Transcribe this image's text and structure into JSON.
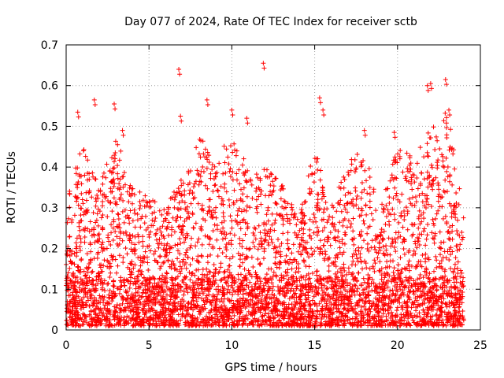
{
  "chart_data": {
    "type": "scatter",
    "title": "Day 077 of 2024, Rate Of TEC Index for receiver sctb",
    "xlabel": "GPS time / hours",
    "ylabel": "ROTI / TECUs",
    "xlim": [
      0,
      25
    ],
    "ylim": [
      0,
      0.7
    ],
    "x_ticks": [
      0,
      5,
      10,
      15,
      20,
      25
    ],
    "y_ticks": [
      0,
      0.1,
      0.2,
      0.3,
      0.4,
      0.5,
      0.6,
      0.7
    ],
    "x_tick_labels": [
      "0",
      "5",
      "10",
      "15",
      "20",
      "25"
    ],
    "y_tick_labels": [
      "0",
      "0.1",
      "0.2",
      "0.3",
      "0.4",
      "0.5",
      "0.6",
      "0.7"
    ],
    "grid": true,
    "marker": "+",
    "marker_color": "#ff0000",
    "data_extent_hours": [
      0,
      24
    ],
    "series": [
      {
        "name": "ROTI",
        "highlight_points": {
          "x": [
            0.7,
            1.7,
            2.9,
            3.4,
            6.8,
            6.9,
            8.5,
            10.0,
            10.9,
            11.9,
            15.3,
            15.5,
            18.0,
            19.8,
            21.8,
            22.0,
            22.9,
            23.1
          ],
          "y": [
            0.535,
            0.565,
            0.555,
            0.49,
            0.64,
            0.525,
            0.565,
            0.54,
            0.52,
            0.655,
            0.57,
            0.54,
            0.49,
            0.485,
            0.6,
            0.605,
            0.615,
            0.54
          ]
        },
        "envelope_hours": [
          0,
          1,
          2,
          3,
          4,
          5,
          6,
          7,
          8,
          9,
          10,
          11,
          12,
          13,
          14,
          15,
          16,
          17,
          18,
          19,
          20,
          21,
          22,
          23,
          24
        ],
        "envelope_upper_roti": [
          0.35,
          0.45,
          0.37,
          0.48,
          0.35,
          0.33,
          0.3,
          0.38,
          0.48,
          0.42,
          0.48,
          0.4,
          0.4,
          0.36,
          0.28,
          0.45,
          0.3,
          0.42,
          0.44,
          0.3,
          0.46,
          0.42,
          0.5,
          0.55,
          0.3
        ]
      }
    ]
  }
}
